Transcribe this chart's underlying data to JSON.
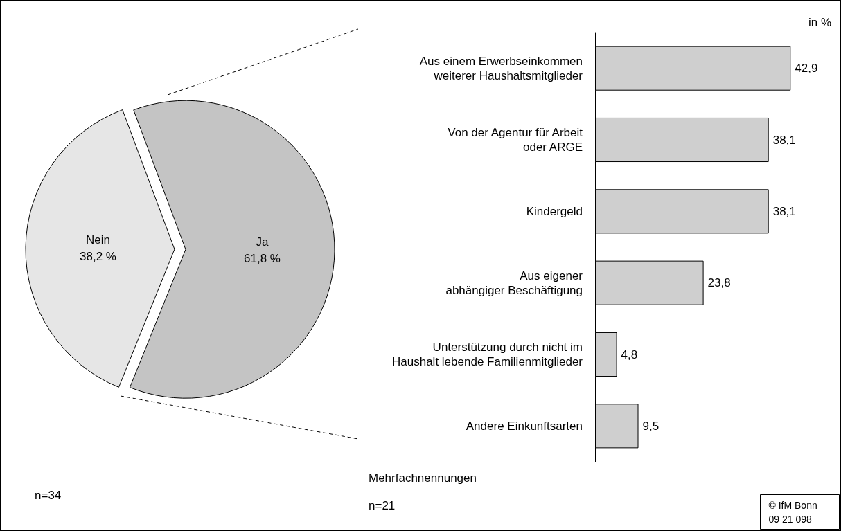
{
  "chart_data": [
    {
      "type": "pie",
      "categories": [
        "Nein",
        "Ja"
      ],
      "values": [
        38.2,
        61.8
      ],
      "colors": [
        "#e6e6e6",
        "#c4c4c4"
      ],
      "value_labels": [
        "38,2 %",
        "61,8 %"
      ],
      "annotations": [
        "n=34"
      ]
    },
    {
      "type": "bar",
      "orientation": "horizontal",
      "xlabel": "in %",
      "categories": [
        "Aus einem Erwerbseinkommen\nweiterer Haushaltsmitglieder",
        "Von der Agentur für Arbeit\noder ARGE",
        "Kindergeld",
        "Aus eigener\nabhängiger Beschäftigung",
        "Unterstützung durch nicht im\nHaushalt lebende Familienmitglieder",
        "Andere Einkunftsarten"
      ],
      "values": [
        42.9,
        38.1,
        38.1,
        23.8,
        4.8,
        9.5
      ],
      "value_labels": [
        "42,9",
        "38,1",
        "38,1",
        "23,8",
        "4,8",
        "9,5"
      ],
      "color": "#cfcfcf",
      "annotations": [
        "Mehrfachnennungen",
        "n=21",
        "© IfM Bonn\n09 21 098"
      ]
    }
  ]
}
